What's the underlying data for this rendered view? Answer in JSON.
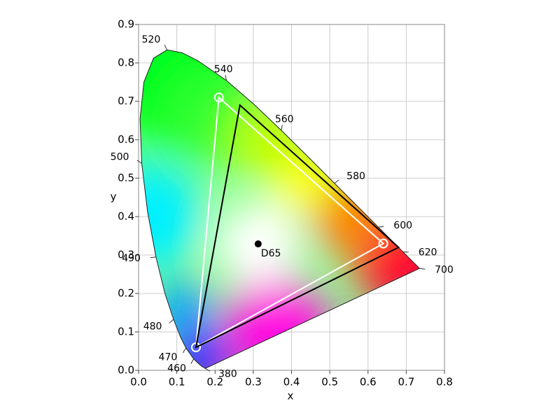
{
  "chart_data": {
    "type": "chromaticity",
    "x_label": "x",
    "y_label": "y",
    "xlim": [
      0,
      0.8
    ],
    "ylim": [
      0,
      0.9
    ],
    "xticks": [
      {
        "value": 0,
        "label": "0.0"
      },
      0.1,
      0.2,
      0.3,
      0.4,
      0.5,
      0.6,
      0.7,
      0.8
    ],
    "yticks": [
      {
        "value": 0,
        "label": "0.0"
      },
      0.1,
      0.2,
      0.3,
      0.4,
      0.5,
      0.6,
      0.7,
      0.8,
      0.9
    ],
    "grid": true,
    "locus": {
      "x": [
        0.1741,
        0.1644,
        0.1566,
        0.144,
        0.1241,
        0.1096,
        0.0913,
        0.0687,
        0.0454,
        0.0235,
        0.0082,
        0.0039,
        0.0139,
        0.0389,
        0.0743,
        0.1142,
        0.1547,
        0.2296,
        0.3016,
        0.3731,
        0.4441,
        0.5125,
        0.5752,
        0.627,
        0.6658,
        0.6915,
        0.719,
        0.7347
      ],
      "y": [
        0.005,
        0.0109,
        0.0177,
        0.0297,
        0.0578,
        0.0868,
        0.1327,
        0.2007,
        0.295,
        0.4127,
        0.5384,
        0.6548,
        0.7502,
        0.812,
        0.8338,
        0.8262,
        0.8059,
        0.7543,
        0.6923,
        0.6245,
        0.5547,
        0.4866,
        0.4242,
        0.3725,
        0.334,
        0.3083,
        0.2809,
        0.2653
      ]
    },
    "wavelength_labels": [
      {
        "nm": 380,
        "x": 0.1741,
        "y": 0.005
      },
      {
        "nm": 460,
        "x": 0.144,
        "y": 0.0297
      },
      {
        "nm": 470,
        "x": 0.1241,
        "y": 0.0578
      },
      {
        "nm": 480,
        "x": 0.0913,
        "y": 0.1327
      },
      {
        "nm": 490,
        "x": 0.0454,
        "y": 0.295
      },
      {
        "nm": 500,
        "x": 0.0082,
        "y": 0.5384
      },
      {
        "nm": 520,
        "x": 0.0743,
        "y": 0.8338
      },
      {
        "nm": 540,
        "x": 0.2296,
        "y": 0.7543
      },
      {
        "nm": 560,
        "x": 0.3731,
        "y": 0.6245
      },
      {
        "nm": 580,
        "x": 0.5125,
        "y": 0.4866
      },
      {
        "nm": 600,
        "x": 0.627,
        "y": 0.3725
      },
      {
        "nm": 620,
        "x": 0.6915,
        "y": 0.3083
      },
      {
        "nm": 700,
        "x": 0.7347,
        "y": 0.2653
      }
    ],
    "label_color": "#1f6fc5",
    "gamuts": [
      {
        "color": "#ffffff",
        "markers": true,
        "x": [
          0.64,
          0.21,
          0.15
        ],
        "y": [
          0.33,
          0.71,
          0.06
        ]
      },
      {
        "color": "#000000",
        "markers": false,
        "x": [
          0.68,
          0.265,
          0.15
        ],
        "y": [
          0.32,
          0.69,
          0.06
        ]
      }
    ],
    "white_point": {
      "label": "D65",
      "x": 0.3127,
      "y": 0.329,
      "color": "#000000"
    }
  }
}
